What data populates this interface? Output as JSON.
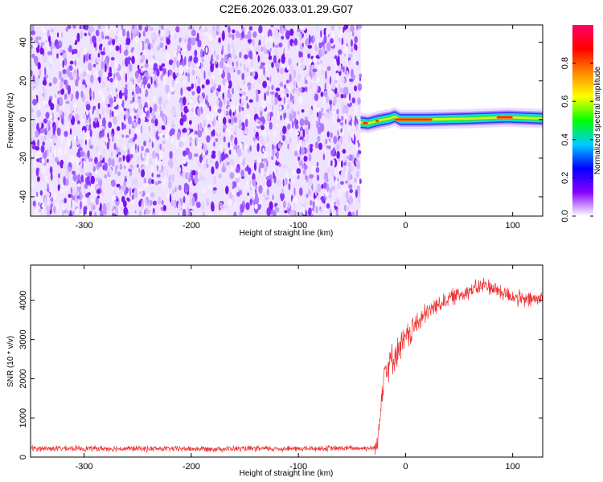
{
  "title": "C2E6.2026.033.01.29.G07",
  "chart_data": [
    {
      "type": "heatmap",
      "name": "spectrogram",
      "xlabel": "Height of straight line (km)",
      "ylabel": "Frequency (Hz)",
      "xlim": [
        -350,
        128
      ],
      "ylim": [
        -50,
        49
      ],
      "xticks": [
        -300,
        -200,
        -100,
        0,
        100
      ],
      "yticks": [
        -40,
        -20,
        0,
        20,
        40
      ],
      "noise_region": {
        "x": [
          -350,
          -42
        ],
        "y": [
          -50,
          49
        ]
      },
      "signal_band": {
        "x_start": -42,
        "center_frequency_hz": 0,
        "points": [
          {
            "x": -42,
            "y": -1.5
          },
          {
            "x": -35,
            "y": -2.0
          },
          {
            "x": -25,
            "y": -0.5
          },
          {
            "x": -15,
            "y": 0.5
          },
          {
            "x": -10,
            "y": 1.5
          },
          {
            "x": -5,
            "y": 0.0
          },
          {
            "x": 20,
            "y": 0.0
          },
          {
            "x": 60,
            "y": 0.5
          },
          {
            "x": 95,
            "y": 1.2
          },
          {
            "x": 128,
            "y": 0.5
          }
        ],
        "peak_amplitude_segments": [
          [
            -40,
            -35
          ],
          [
            -28,
            -25
          ],
          [
            -10,
            25
          ],
          [
            85,
            100
          ]
        ]
      },
      "colorbar": {
        "label": "Normalized spectral amplitude",
        "range": [
          0.0,
          1.0
        ],
        "ticks": [
          0.0,
          0.2,
          0.4,
          0.6,
          0.8
        ],
        "tick_labels": [
          "0.0",
          "0.2",
          "0.4",
          "0.6",
          "0.8"
        ],
        "colors": [
          "#ffffff",
          "#8800ff",
          "#0000ff",
          "#00ccff",
          "#00ff00",
          "#ffff00",
          "#ff8800",
          "#ff0000",
          "#ff0066"
        ]
      }
    },
    {
      "type": "line",
      "name": "snr",
      "xlabel": "Height of straight line (km)",
      "ylabel": "SNR (10 * v/v)",
      "xlim": [
        -350,
        128
      ],
      "ylim": [
        0,
        4900
      ],
      "xticks": [
        -300,
        -200,
        -100,
        0,
        100
      ],
      "yticks": [
        0,
        1000,
        2000,
        3000,
        4000
      ],
      "series": [
        {
          "name": "SNR",
          "color": "#ee3333",
          "trend": [
            {
              "x": -350,
              "y": 220
            },
            {
              "x": -300,
              "y": 220
            },
            {
              "x": -200,
              "y": 210
            },
            {
              "x": -100,
              "y": 215
            },
            {
              "x": -30,
              "y": 230
            },
            {
              "x": -26,
              "y": 300
            },
            {
              "x": -24,
              "y": 1200
            },
            {
              "x": -20,
              "y": 2200
            },
            {
              "x": -10,
              "y": 2600
            },
            {
              "x": 0,
              "y": 3000
            },
            {
              "x": 10,
              "y": 3400
            },
            {
              "x": 25,
              "y": 3800
            },
            {
              "x": 40,
              "y": 4050
            },
            {
              "x": 60,
              "y": 4250
            },
            {
              "x": 75,
              "y": 4400
            },
            {
              "x": 90,
              "y": 4200
            },
            {
              "x": 110,
              "y": 4000
            },
            {
              "x": 128,
              "y": 4050
            }
          ],
          "noise_amplitude": [
            {
              "x": -350,
              "y": 70
            },
            {
              "x": -30,
              "y": 70
            },
            {
              "x": -24,
              "y": 400
            },
            {
              "x": 0,
              "y": 350
            },
            {
              "x": 30,
              "y": 200
            },
            {
              "x": 128,
              "y": 200
            }
          ]
        }
      ]
    }
  ]
}
